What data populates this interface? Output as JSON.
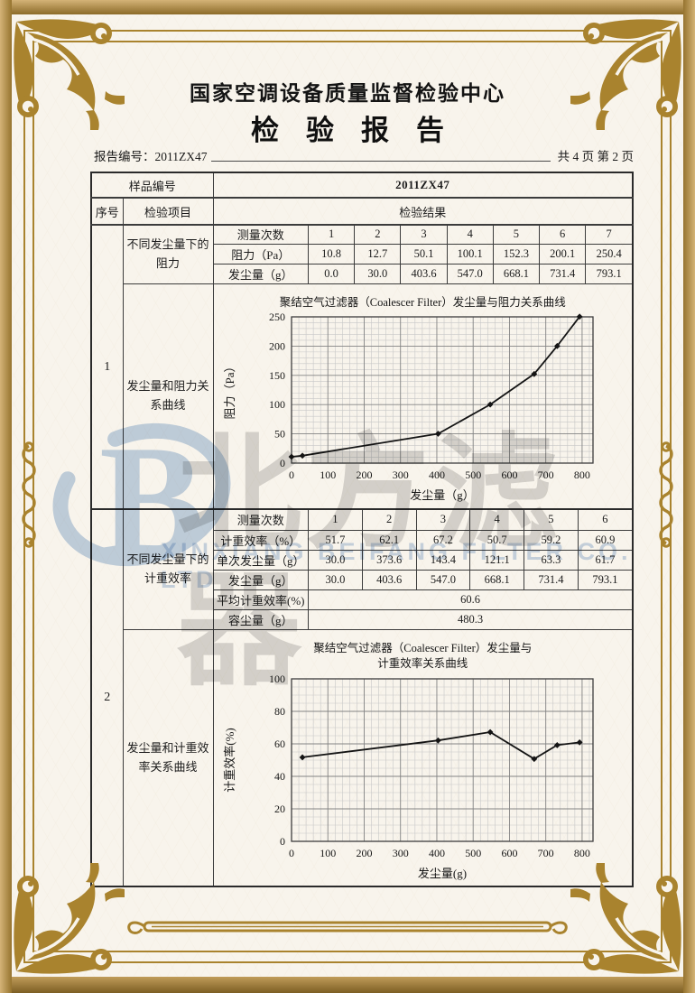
{
  "header": {
    "org_title": "国家空调设备质量监督检验中心",
    "report_title": "检验报告",
    "report_no": "报告编号：2011ZX47",
    "page_info": "共 4 页 第 2 页"
  },
  "table": {
    "sample_label": "样品编号",
    "sample_value": "2011ZX47",
    "columns": {
      "serial": "序号",
      "item": "检验项目",
      "result": "检验结果"
    },
    "section1": {
      "serial": "1",
      "item_top": "不同发尘量下的阻力",
      "item_bottom": "发尘量和阻力关系曲线",
      "rows": [
        {
          "label": "测量次数",
          "values": [
            "1",
            "2",
            "3",
            "4",
            "5",
            "6",
            "7"
          ]
        },
        {
          "label": "阻力（Pa）",
          "values": [
            "10.8",
            "12.7",
            "50.1",
            "100.1",
            "152.3",
            "200.1",
            "250.4"
          ]
        },
        {
          "label": "发尘量（g）",
          "values": [
            "0.0",
            "30.0",
            "403.6",
            "547.0",
            "668.1",
            "731.4",
            "793.1"
          ]
        }
      ]
    },
    "section2": {
      "serial": "2",
      "item_top": "不同发尘量下的计重效率",
      "item_bottom": "发尘量和计重效率关系曲线",
      "rows": [
        {
          "label": "测量次数",
          "values": [
            "1",
            "2",
            "3",
            "4",
            "5",
            "6"
          ]
        },
        {
          "label": "计重效率（%）",
          "values": [
            "51.7",
            "62.1",
            "67.2",
            "50.7",
            "59.2",
            "60.9"
          ]
        },
        {
          "label": "单次发尘量（g）",
          "values": [
            "30.0",
            "373.6",
            "143.4",
            "121.1",
            "63.3",
            "61.7"
          ]
        },
        {
          "label": "发尘量（g）",
          "values": [
            "30.0",
            "403.6",
            "547.0",
            "668.1",
            "731.4",
            "793.1"
          ]
        }
      ],
      "summary": [
        {
          "label": "平均计重效率(%)",
          "value": "60.6"
        },
        {
          "label": "容尘量（g）",
          "value": "480.3"
        }
      ]
    }
  },
  "watermark": {
    "logo_letter": "B",
    "cn": "北方滤器",
    "en": "XINXIANG BEIFANG FILTER CO. LTD"
  },
  "colors": {
    "gold": "#a9832e",
    "paper": "#f8f4ec",
    "watermark_blue": "#c6d6ea",
    "watermark_gray": "#d7d7d7",
    "ink": "#1c1c1c"
  },
  "chart_data": [
    {
      "type": "line",
      "title": "聚结空气过滤器（Coalescer Filter）发尘量与阻力关系曲线",
      "x": [
        0,
        30,
        403.6,
        547.0,
        668.1,
        731.4,
        793.1
      ],
      "y": [
        10.8,
        12.7,
        50.1,
        100.1,
        152.3,
        200.1,
        250.4
      ],
      "xlabel": "发尘量（g）",
      "ylabel": "阻力（Pa）",
      "xlim": [
        0,
        830
      ],
      "ylim": [
        0,
        250
      ],
      "xticks": [
        0,
        100,
        200,
        300,
        400,
        500,
        600,
        700,
        800
      ],
      "yticks": [
        0,
        50,
        100,
        150,
        200,
        250
      ],
      "grid": {
        "xminor": 20,
        "xmajor": 100,
        "yminor": 10,
        "ymajor": 50
      },
      "grid_on": true,
      "legend": "none"
    },
    {
      "type": "line",
      "title_line1": "聚结空气过滤器（Coalescer Filter）发尘量与",
      "title_line2": "计重效率关系曲线",
      "x": [
        30,
        403.6,
        547.0,
        668.1,
        731.4,
        793.1
      ],
      "y": [
        51.7,
        62.1,
        67.2,
        50.7,
        59.2,
        60.9
      ],
      "xlabel": "发尘量(g)",
      "ylabel": "计重效率(%)",
      "xlim": [
        0,
        830
      ],
      "ylim": [
        0,
        100
      ],
      "xticks": [
        0,
        100,
        200,
        300,
        400,
        500,
        600,
        700,
        800
      ],
      "yticks": [
        0,
        20,
        40,
        60,
        80,
        100
      ],
      "grid": {
        "xminor": 20,
        "xmajor": 100,
        "yminor": 5,
        "ymajor": 20
      },
      "grid_on": true,
      "legend": "none"
    }
  ]
}
